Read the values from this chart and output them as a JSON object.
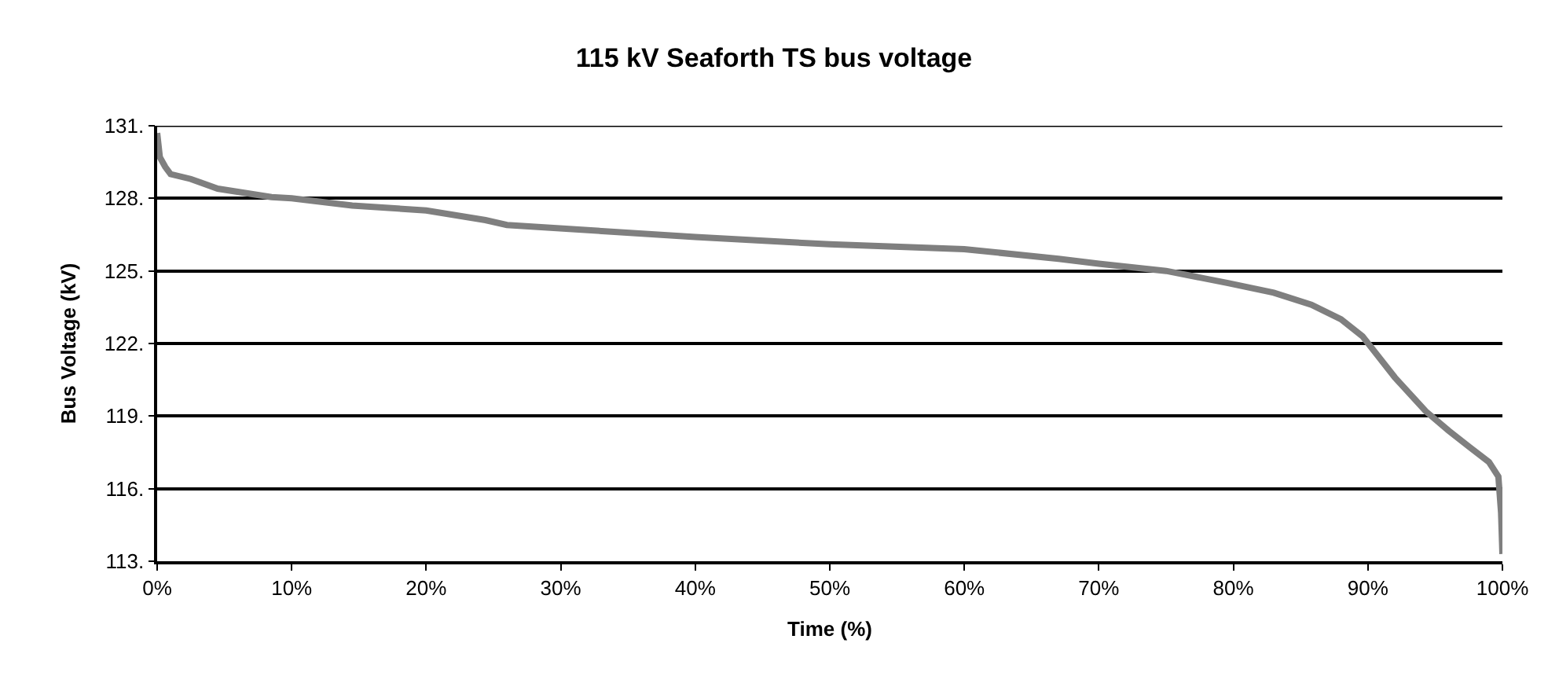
{
  "chart_data": {
    "type": "line",
    "title": "115 kV Seaforth TS bus voltage",
    "xlabel": "Time (%)",
    "ylabel": "Bus Voltage (kV)",
    "x": [
      0,
      0.2,
      0.6,
      1,
      2.5,
      4.5,
      8.5,
      10,
      14.5,
      20,
      24.4,
      26,
      40,
      50,
      60,
      67,
      70,
      75,
      79.6,
      83,
      85.8,
      88,
      89.6,
      92,
      94.3,
      96,
      97.6,
      99,
      99.7,
      99.9,
      100
    ],
    "series": [
      {
        "color": "#7f7f7f",
        "values": [
          130.7,
          129.7,
          129.3,
          129.0,
          128.8,
          128.4,
          128.05,
          128.0,
          127.7,
          127.5,
          127.1,
          126.9,
          126.4,
          126.1,
          125.9,
          125.5,
          125.3,
          125.0,
          124.5,
          124.1,
          123.6,
          123.0,
          122.3,
          120.6,
          119.2,
          118.4,
          117.7,
          117.1,
          116.5,
          115.0,
          113.3
        ]
      }
    ],
    "xlim": [
      0,
      100
    ],
    "ylim": [
      113,
      131
    ],
    "xticks": [
      {
        "value": 0,
        "label": "0%"
      },
      {
        "value": 10,
        "label": "10%"
      },
      {
        "value": 20,
        "label": "20%"
      },
      {
        "value": 30,
        "label": "30%"
      },
      {
        "value": 40,
        "label": "40%"
      },
      {
        "value": 50,
        "label": "50%"
      },
      {
        "value": 60,
        "label": "60%"
      },
      {
        "value": 70,
        "label": "70%"
      },
      {
        "value": 80,
        "label": "80%"
      },
      {
        "value": 90,
        "label": "90%"
      },
      {
        "value": 100,
        "label": "100%"
      }
    ],
    "yticks": [
      {
        "value": 113,
        "label": "113."
      },
      {
        "value": 116,
        "label": "116."
      },
      {
        "value": 119,
        "label": "119."
      },
      {
        "value": 122,
        "label": "122."
      },
      {
        "value": 125,
        "label": "125."
      },
      {
        "value": 128,
        "label": "128."
      },
      {
        "value": 131,
        "label": "131."
      }
    ],
    "grid": "y",
    "marker": "none",
    "line_style": "solid"
  }
}
